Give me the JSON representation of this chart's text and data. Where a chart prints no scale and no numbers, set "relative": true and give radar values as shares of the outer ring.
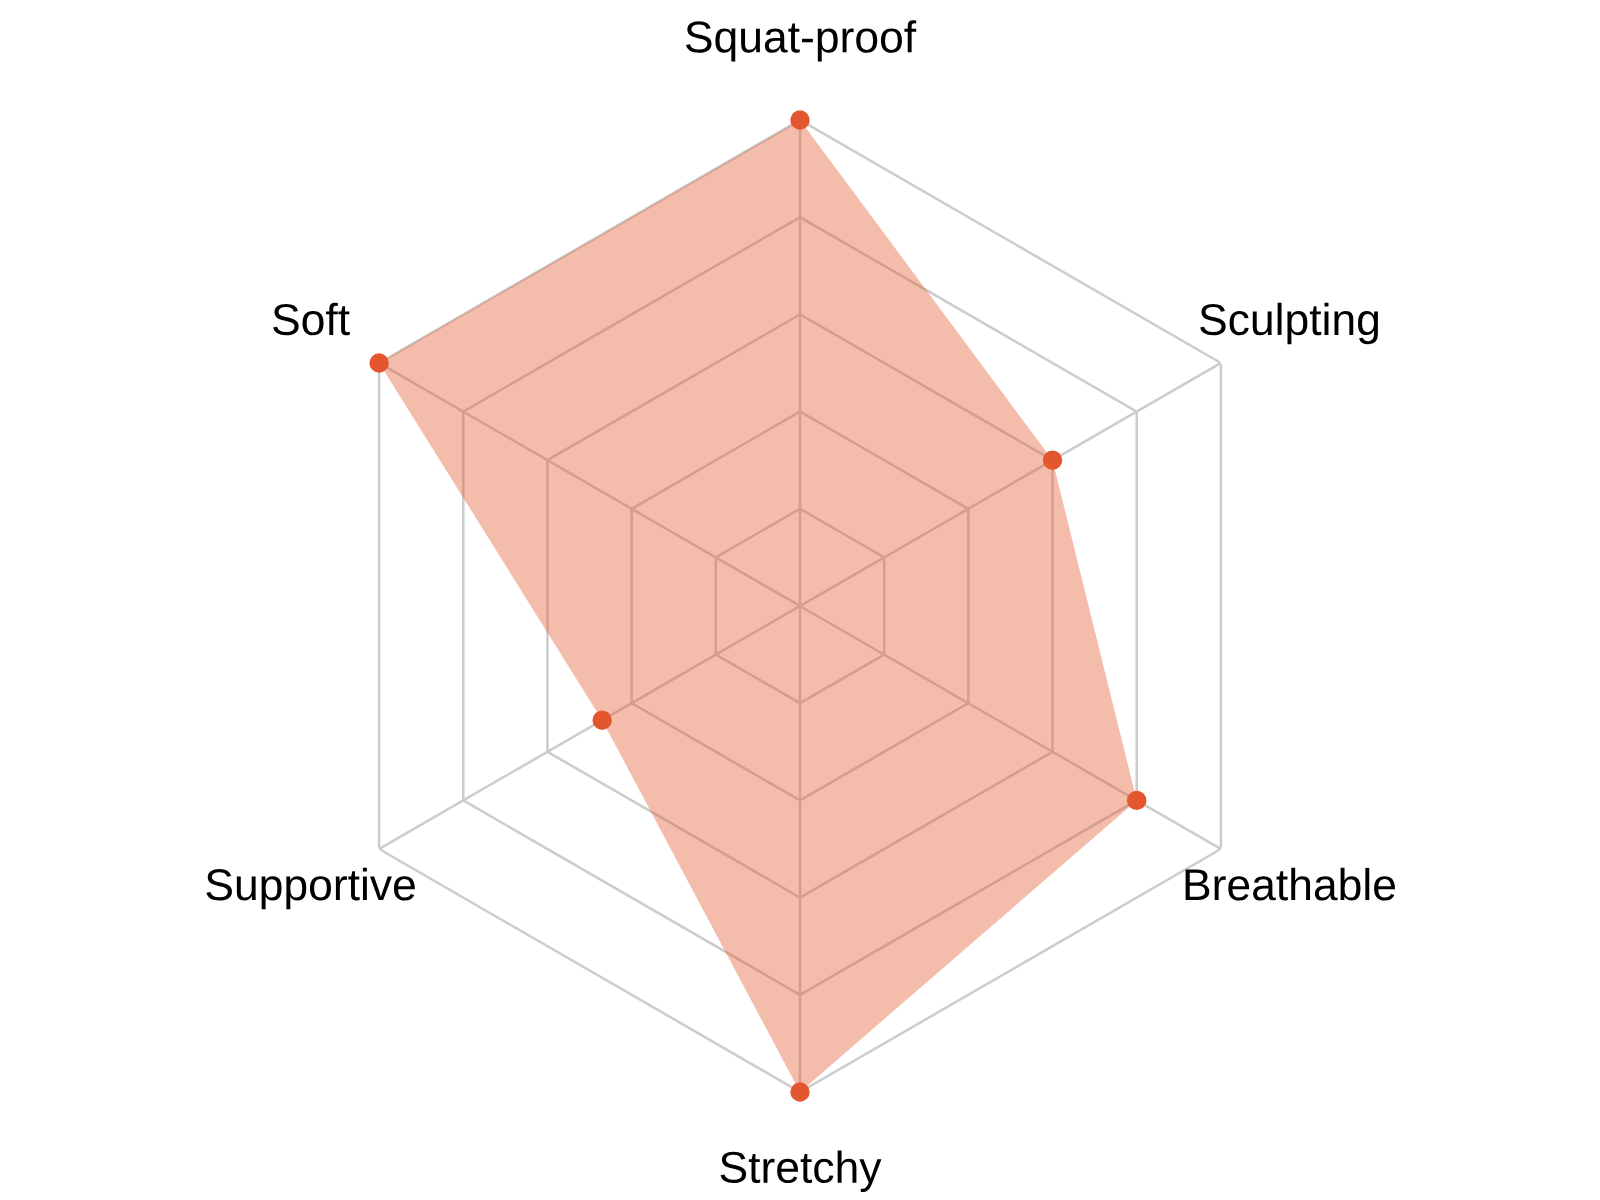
{
  "chart_data": {
    "type": "radar",
    "relative": true,
    "grid": true,
    "marker": "circle",
    "categories": [
      "Squat-proof",
      "Sculpting",
      "Breathable",
      "Stretchy",
      "Supportive",
      "Soft"
    ],
    "series": [
      {
        "color": "#e4572e",
        "values": [
          1,
          0.6,
          0.8,
          1,
          0.47,
          1
        ]
      }
    ]
  }
}
